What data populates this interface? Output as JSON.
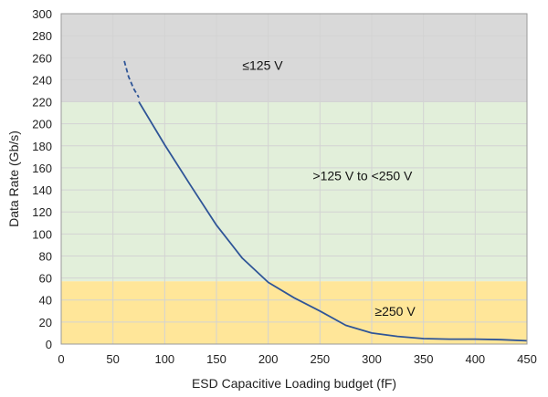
{
  "chart_data": {
    "type": "line",
    "title": "",
    "xlabel": "ESD Capacitive Loading budget (fF)",
    "ylabel": "Data Rate (Gb/s)",
    "xlim": [
      0,
      450
    ],
    "ylim": [
      0,
      300
    ],
    "x_ticks": [
      0,
      50,
      100,
      150,
      200,
      250,
      300,
      350,
      400,
      450
    ],
    "y_ticks": [
      0,
      20,
      40,
      60,
      80,
      100,
      120,
      140,
      160,
      180,
      200,
      220,
      240,
      260,
      280,
      300
    ],
    "grid": true,
    "bands": [
      {
        "label": "≤125 V",
        "y_min": 220,
        "y_max": 300,
        "color": "#d9d9d9",
        "label_x": 175,
        "label_y": 253
      },
      {
        "label": ">125 V to <250 V",
        "y_min": 57,
        "y_max": 220,
        "color": "#e2efda",
        "label_x": 243,
        "label_y": 153
      },
      {
        "label": "≥250 V",
        "y_min": 0,
        "y_max": 57,
        "color": "#ffe699",
        "label_x": 303,
        "label_y": 30
      }
    ],
    "series": [
      {
        "color": "#2f5597",
        "dashed_segment": {
          "x": [
            61,
            65,
            70,
            75
          ],
          "y": [
            257,
            243,
            232,
            224
          ]
        },
        "solid_segment": {
          "x": [
            75,
            100,
            125,
            150,
            175,
            200,
            225,
            250,
            275,
            300,
            325,
            350,
            375,
            400,
            425,
            450
          ],
          "y": [
            220,
            181,
            144,
            108,
            78,
            56,
            42,
            30,
            17,
            10,
            7,
            5,
            4.5,
            4.5,
            4,
            3
          ]
        }
      }
    ]
  }
}
